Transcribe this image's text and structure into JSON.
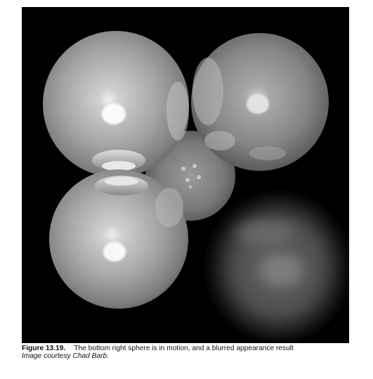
{
  "figure": {
    "label": "Figure 13.19.",
    "caption": "The bottom right sphere is in motion, and a blurred appearance result",
    "credit": "Image courtesy Chad Barb."
  }
}
